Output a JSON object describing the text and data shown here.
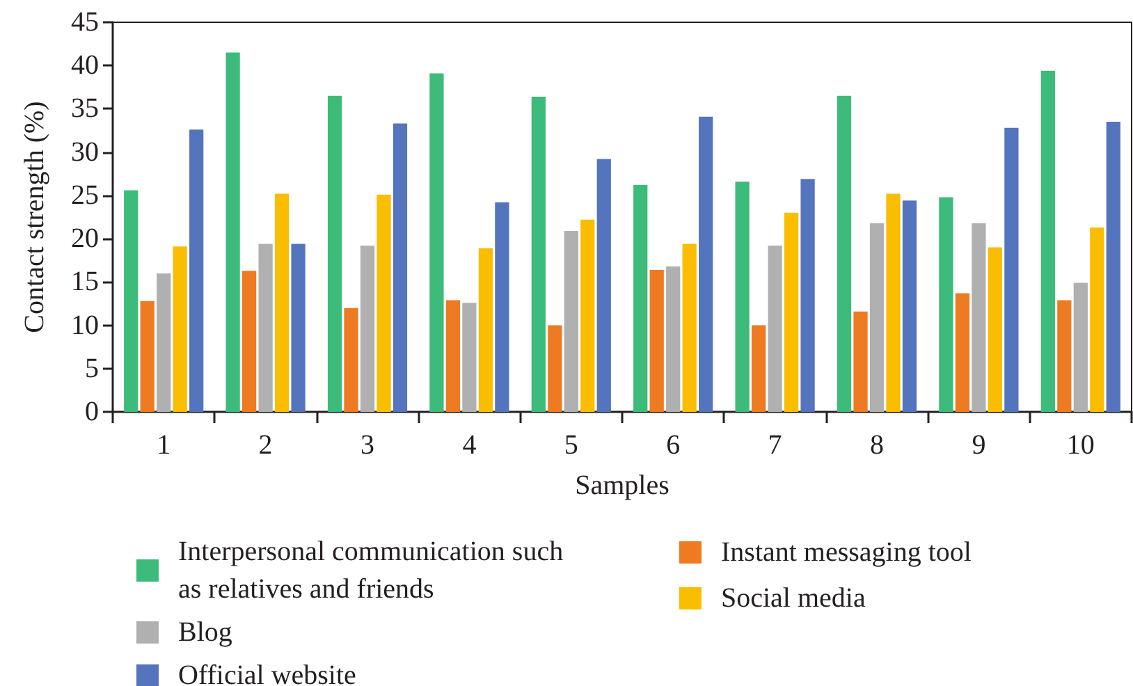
{
  "chart_data": {
    "type": "bar",
    "xlabel": "Samples",
    "ylabel": "Contact strength (%)",
    "categories": [
      "1",
      "2",
      "3",
      "4",
      "5",
      "6",
      "7",
      "8",
      "9",
      "10"
    ],
    "series": [
      {
        "name": "Interpersonal communication such as relatives and friends",
        "color": "#3dbb7a",
        "values": [
          25.6,
          41.5,
          36.5,
          39.1,
          36.4,
          26.2,
          26.6,
          36.5,
          24.8,
          39.4
        ]
      },
      {
        "name": "Instant messaging tool",
        "color": "#ee7a22",
        "values": [
          12.8,
          16.3,
          12.0,
          12.9,
          10.0,
          16.4,
          10.0,
          11.6,
          13.7,
          12.9
        ]
      },
      {
        "name": "Blog",
        "color": "#b0b0b0",
        "values": [
          16.0,
          19.4,
          19.2,
          12.6,
          20.9,
          16.8,
          19.2,
          21.8,
          21.8,
          14.9
        ]
      },
      {
        "name": "Social media",
        "color": "#fbbd00",
        "values": [
          19.1,
          25.2,
          25.1,
          18.9,
          22.2,
          19.4,
          23.0,
          25.2,
          19.0,
          21.3
        ]
      },
      {
        "name": "Official website",
        "color": "#5474bd",
        "values": [
          32.6,
          19.4,
          33.3,
          24.2,
          29.2,
          34.1,
          26.9,
          24.4,
          32.8,
          33.5
        ]
      }
    ],
    "ylim": [
      0,
      45
    ],
    "yticks": [
      0,
      5,
      10,
      15,
      20,
      25,
      30,
      35,
      40,
      45
    ],
    "grid": false,
    "legend": "bottom"
  }
}
